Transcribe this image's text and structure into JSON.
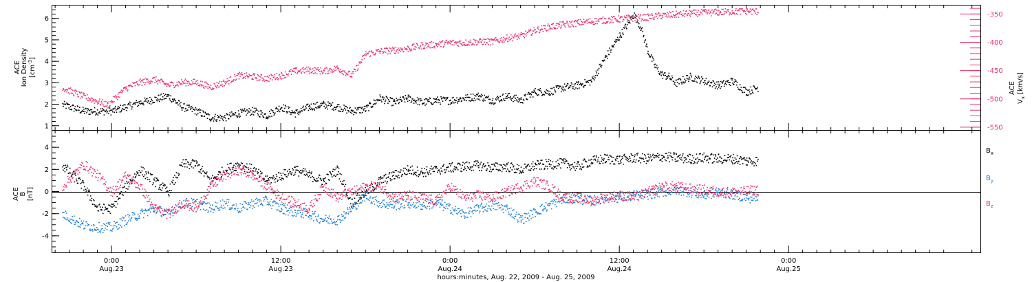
{
  "chart_data": [
    {
      "type": "scatter",
      "panel": "top",
      "left_ylabel_lines": [
        "ACE",
        "Ion Density"
      ],
      "left_yunit_base": "[cm",
      "left_yunit_sup": "-3",
      "left_yunit_end": "]",
      "right_ylabel_lines": [
        "ACE"
      ],
      "right_yunit_prefix": "V",
      "right_yunit_sub": "x",
      "right_yunit_rest": "[km/s]",
      "ylim_left": [
        0.8,
        6.6
      ],
      "left_ticks": [
        1,
        2,
        3,
        4,
        5,
        6
      ],
      "ylim_right": [
        -555,
        -335
      ],
      "right_ticks": [
        -550,
        -500,
        -450,
        -400,
        -350
      ],
      "left_color": "#000000",
      "right_color": "#e8336a",
      "series": [
        {
          "axis": "left",
          "color": "#000000",
          "x": [
            -3.5,
            -2,
            0,
            2,
            4,
            5,
            6,
            7,
            8,
            9,
            10,
            11,
            12,
            13,
            14,
            15,
            16,
            17,
            18,
            19,
            20,
            21,
            22,
            23,
            24,
            25,
            26,
            27,
            28,
            29,
            30,
            31,
            32,
            33,
            34,
            35,
            36,
            37,
            37.5,
            38,
            38.5,
            39,
            39.5,
            40,
            41,
            42,
            43,
            44,
            45,
            45.8
          ],
          "y": [
            2.0,
            1.7,
            1.7,
            2.1,
            2.4,
            1.9,
            1.7,
            1.4,
            1.4,
            1.6,
            1.7,
            1.5,
            1.9,
            1.6,
            1.9,
            2.0,
            1.9,
            1.7,
            1.8,
            2.3,
            2.1,
            2.3,
            2.1,
            2.2,
            2.2,
            2.3,
            2.4,
            2.2,
            2.4,
            2.2,
            2.6,
            2.6,
            2.8,
            2.9,
            3.1,
            4.2,
            5.2,
            6.2,
            5.6,
            4.5,
            3.8,
            3.4,
            3.3,
            3.0,
            3.3,
            3.1,
            2.9,
            3.1,
            2.6,
            2.8
          ]
        },
        {
          "axis": "right",
          "color": "#e8336a",
          "x": [
            -3.5,
            -2,
            -0.3,
            1,
            2,
            3,
            4,
            5,
            6,
            7,
            8,
            9,
            10,
            11,
            12,
            13,
            14,
            15,
            16,
            17,
            18,
            19,
            20,
            21,
            22,
            23,
            24,
            25,
            26,
            27,
            28,
            29,
            30,
            31,
            32,
            33,
            34,
            35,
            36,
            37,
            38,
            39,
            40,
            41,
            42,
            43,
            44,
            45,
            45.8
          ],
          "y": [
            -480,
            -495,
            -510,
            -480,
            -470,
            -465,
            -475,
            -470,
            -470,
            -478,
            -470,
            -458,
            -460,
            -463,
            -458,
            -450,
            -448,
            -450,
            -445,
            -458,
            -420,
            -415,
            -413,
            -410,
            -405,
            -403,
            -400,
            -400,
            -398,
            -398,
            -392,
            -388,
            -378,
            -372,
            -368,
            -365,
            -362,
            -360,
            -358,
            -356,
            -355,
            -352,
            -350,
            -348,
            -347,
            -346,
            -345,
            -344,
            -345
          ]
        }
      ]
    },
    {
      "type": "scatter",
      "panel": "bottom",
      "ylabel_lines": [
        "ACE",
        "B"
      ],
      "ylabel_unit": "[nT]",
      "ylim": [
        -5.5,
        5.5
      ],
      "yticks": [
        -4,
        -2,
        0,
        2,
        4
      ],
      "series": [
        {
          "label_main": "B",
          "label_sub": "x",
          "color": "#000000",
          "x": [
            -3.5,
            -2,
            -1,
            0,
            1,
            2,
            3,
            4,
            5,
            6,
            7,
            8,
            9,
            10,
            11,
            12,
            13,
            14,
            15,
            16,
            17,
            18,
            19,
            20,
            21,
            22,
            23,
            24,
            25,
            26,
            27,
            28,
            29,
            30,
            31,
            32,
            33,
            34,
            35,
            36,
            37,
            38,
            39,
            40,
            41,
            42,
            43,
            44,
            45,
            45.8
          ],
          "y": [
            2.4,
            0.5,
            -1.5,
            -1.5,
            0.5,
            2.0,
            1.0,
            0.0,
            2.5,
            2.5,
            1.0,
            2.0,
            2.5,
            2.0,
            1.0,
            1.5,
            2.0,
            1.5,
            1.0,
            2.0,
            -1.0,
            0.0,
            1.0,
            1.5,
            2.0,
            1.8,
            2.0,
            2.2,
            2.3,
            2.4,
            2.2,
            2.3,
            2.0,
            2.4,
            2.5,
            2.6,
            2.3,
            2.8,
            3.0,
            2.9,
            3.1,
            3.0,
            3.2,
            3.1,
            3.0,
            3.1,
            3.0,
            3.0,
            2.8,
            2.8
          ]
        },
        {
          "label_main": "B",
          "label_sub": "y",
          "color": "#1e7fd6",
          "x": [
            -3.5,
            -2,
            -1,
            0,
            1,
            2,
            3,
            4,
            5,
            6,
            7,
            8,
            9,
            10,
            11,
            12,
            13,
            14,
            15,
            16,
            17,
            18,
            19,
            20,
            21,
            22,
            23,
            24,
            25,
            26,
            27,
            28,
            29,
            30,
            31,
            32,
            33,
            34,
            35,
            36,
            37,
            38,
            39,
            40,
            41,
            42,
            43,
            44,
            45,
            45.8
          ],
          "y": [
            -2.0,
            -3.0,
            -3.2,
            -3.2,
            -2.5,
            -2.0,
            -1.5,
            -2.0,
            -1.0,
            -1.0,
            -1.5,
            -1.0,
            -1.5,
            -1.0,
            -0.8,
            -1.5,
            -1.8,
            -2.0,
            -2.5,
            -2.5,
            -1.5,
            -0.3,
            -1.0,
            -1.2,
            -1.0,
            -1.2,
            -1.0,
            -1.5,
            -2.0,
            -1.5,
            -1.2,
            -1.5,
            -2.5,
            -1.8,
            -1.2,
            -0.6,
            -0.6,
            -0.8,
            -0.5,
            -0.5,
            -0.3,
            -0.2,
            0.0,
            0.2,
            0.0,
            -0.3,
            0.0,
            -0.2,
            -0.5,
            -0.6
          ]
        },
        {
          "label_main": "B",
          "label_sub": "z",
          "color": "#e8336a",
          "x": [
            -3.5,
            -2,
            -1,
            0,
            1,
            2,
            3,
            4,
            5,
            6,
            7,
            8,
            9,
            10,
            11,
            12,
            13,
            14,
            15,
            16,
            17,
            18,
            19,
            20,
            21,
            22,
            23,
            24,
            25,
            26,
            27,
            28,
            29,
            30,
            31,
            32,
            33,
            34,
            35,
            36,
            37,
            38,
            39,
            40,
            41,
            42,
            43,
            44,
            45,
            45.8
          ],
          "y": [
            0.5,
            2.5,
            1.5,
            0.0,
            1.5,
            0.5,
            -1.5,
            -2.0,
            -1.0,
            -1.5,
            0.5,
            1.5,
            2.0,
            1.5,
            0.5,
            -0.5,
            -1.0,
            -1.5,
            0.5,
            -0.5,
            0.0,
            0.5,
            0.5,
            -0.5,
            -0.3,
            -0.5,
            -0.8,
            0.5,
            -0.5,
            -0.3,
            -0.5,
            0.0,
            0.5,
            1.0,
            0.5,
            -0.5,
            -0.5,
            -0.8,
            -0.5,
            -0.3,
            -0.5,
            0.0,
            0.5,
            0.5,
            0.3,
            0.2,
            0.0,
            0.0,
            0.1,
            0.2
          ]
        }
      ]
    }
  ],
  "x_axis": {
    "xlim": [
      -4.2,
      61.6
    ],
    "major": [
      {
        "x": 0,
        "time": "0:00",
        "date": "Aug.23"
      },
      {
        "x": 12,
        "time": "12:00",
        "date": "Aug.23"
      },
      {
        "x": 24,
        "time": "0:00",
        "date": "Aug.24"
      },
      {
        "x": 36,
        "time": "12:00",
        "date": "Aug.24"
      },
      {
        "x": 48,
        "time": "0:00",
        "date": "Aug.25"
      }
    ],
    "label": "hours:minutes, Aug. 22, 2009 - Aug. 25, 2009"
  }
}
